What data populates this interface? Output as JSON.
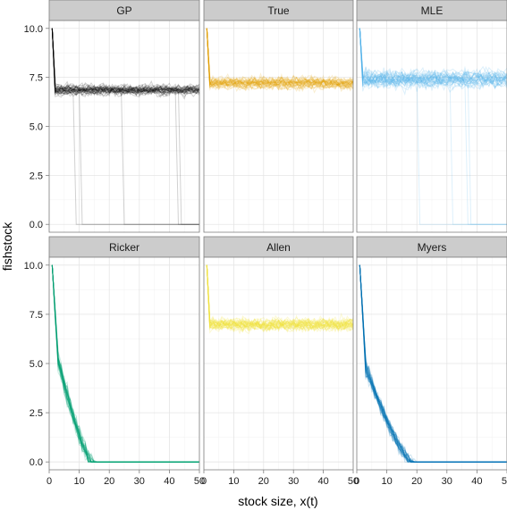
{
  "chart_data": {
    "type": "line",
    "layout": "facet-grid 2x3",
    "xlabel": "stock size, x(t)",
    "ylabel": "fishstock",
    "xlim": [
      0,
      50
    ],
    "ylim": [
      -0.4,
      10.4
    ],
    "x_ticks": [
      0,
      10,
      20,
      30,
      40,
      50
    ],
    "y_ticks": [
      0.0,
      2.5,
      5.0,
      7.5,
      10.0
    ],
    "y_tick_labels": [
      "0.0",
      "2.5",
      "5.0",
      "7.5",
      "10.0"
    ],
    "grid": true,
    "panels": [
      {
        "name": "GP",
        "color": "#000000",
        "start": 10.0,
        "behavior": "stable-with-collapse",
        "steady_mean": 6.9,
        "steady_spread": 0.7,
        "collapse_fraction": 0.1,
        "collapse_start": 5,
        "collapse_end": 50,
        "replicates": 35,
        "opacity": 0.18
      },
      {
        "name": "True",
        "color": "#E69F00",
        "start": 10.0,
        "behavior": "stable",
        "steady_mean": 7.2,
        "steady_spread": 0.8,
        "replicates": 35,
        "opacity": 0.18
      },
      {
        "name": "MLE",
        "color": "#56B4E9",
        "start": 10.0,
        "behavior": "stable-with-collapse",
        "steady_mean": 7.4,
        "steady_spread": 1.1,
        "collapse_fraction": 0.13,
        "collapse_start": 8,
        "collapse_end": 50,
        "replicates": 35,
        "opacity": 0.2
      },
      {
        "name": "Ricker",
        "color": "#009E73",
        "start": 10.0,
        "behavior": "decline",
        "decline_level": 5.1,
        "decline_midpoint": 7,
        "decline_zero_at": 14,
        "replicates": 35,
        "opacity": 0.2
      },
      {
        "name": "Allen",
        "color": "#F0E442",
        "start": 10.0,
        "behavior": "stable",
        "steady_mean": 7.0,
        "steady_spread": 0.9,
        "replicates": 35,
        "opacity": 0.22
      },
      {
        "name": "Myers",
        "color": "#0072B2",
        "start": 10.0,
        "behavior": "decline",
        "decline_level": 4.8,
        "decline_midpoint": 8,
        "decline_zero_at": 18,
        "replicates": 35,
        "opacity": 0.2
      }
    ]
  }
}
